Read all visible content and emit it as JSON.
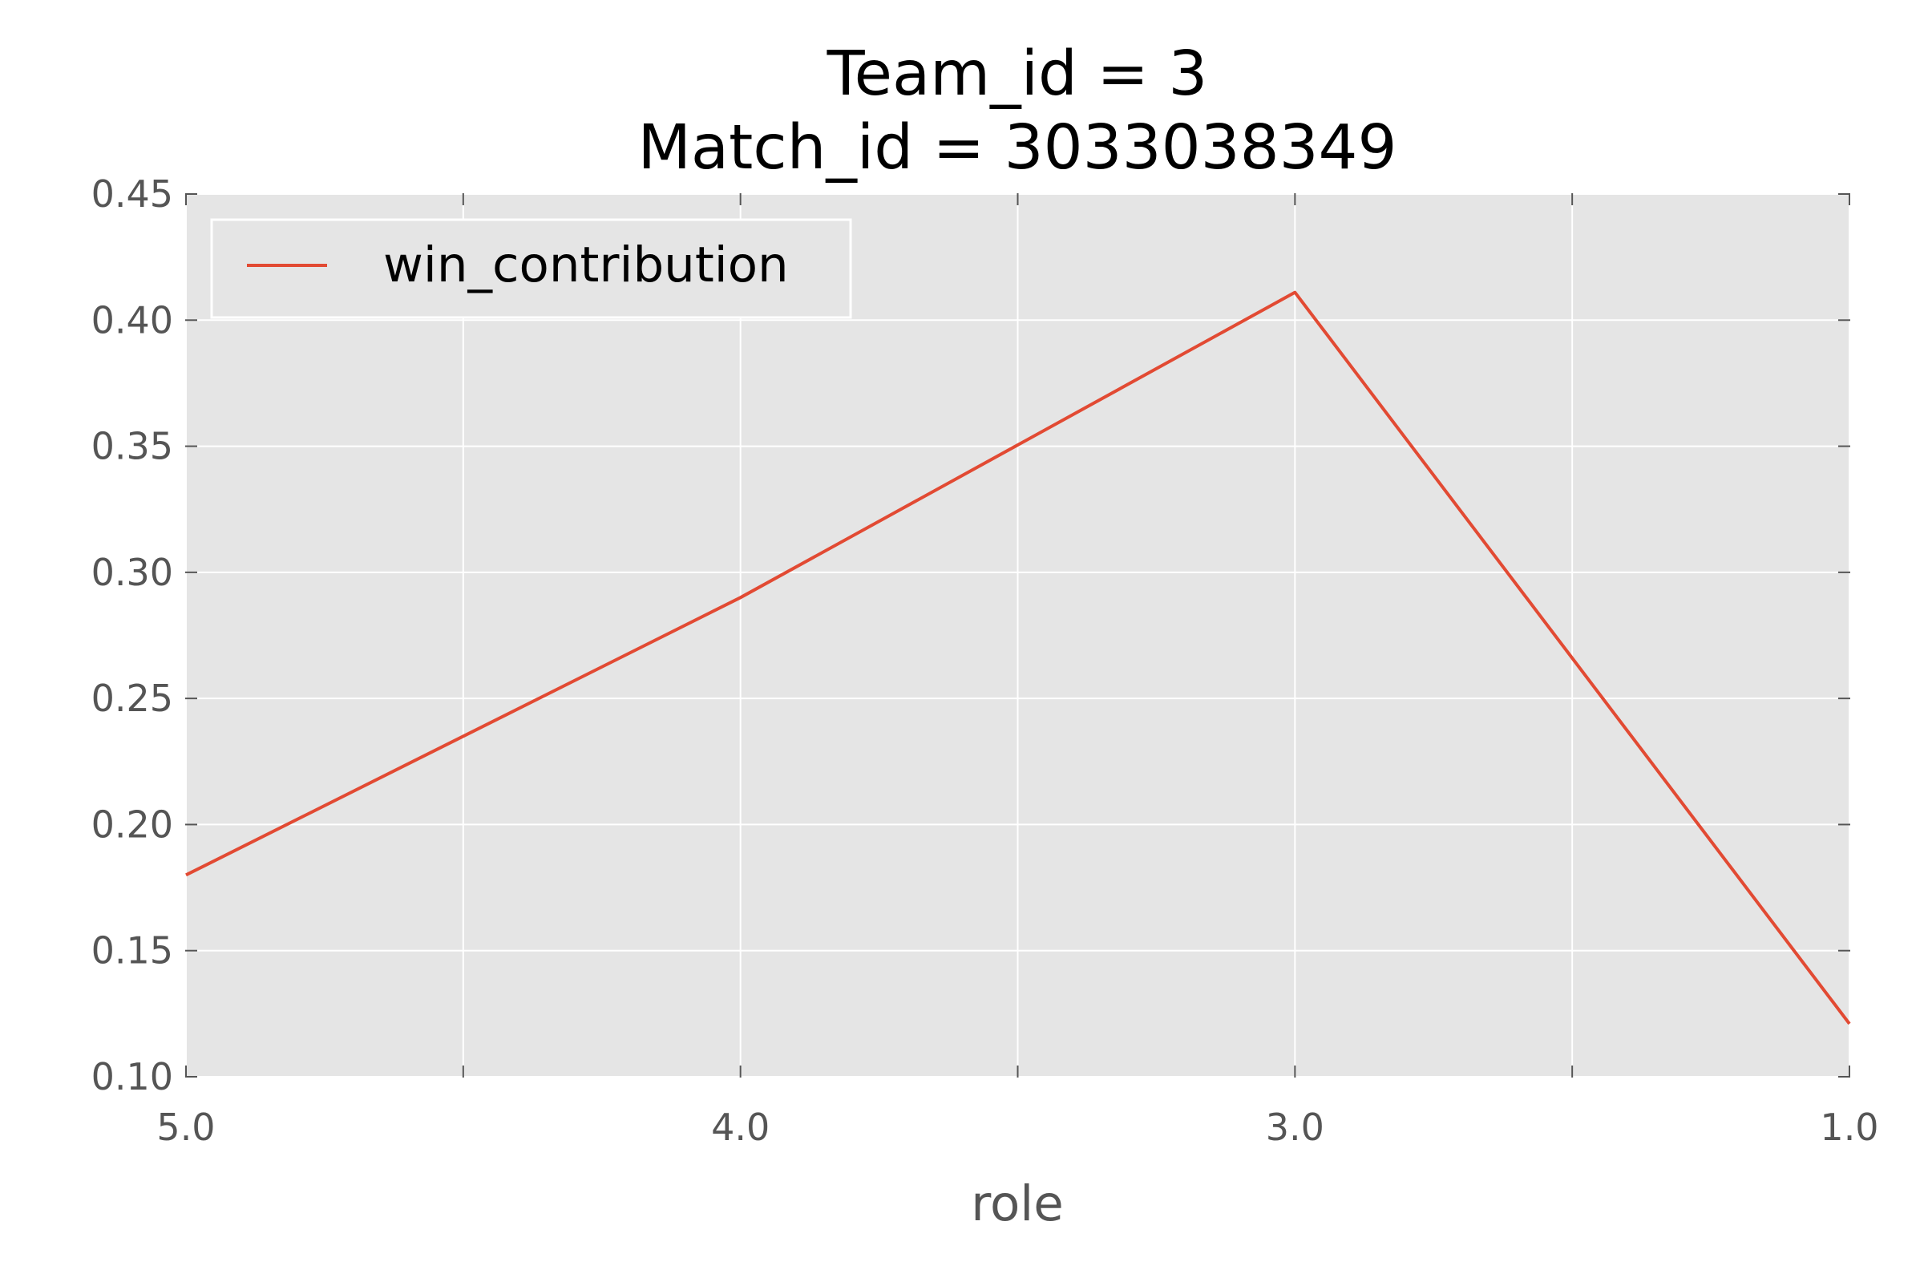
{
  "chart_data": {
    "type": "line",
    "title": [
      "Team_id = 3",
      "Match_id = 3033038349"
    ],
    "xlabel": "role",
    "ylabel": "",
    "categories": [
      "5.0",
      "4.0",
      "3.0",
      "1.0"
    ],
    "series": [
      {
        "name": "win_contribution",
        "color": "#e24a33",
        "values": [
          0.18,
          0.29,
          0.411,
          0.121
        ]
      }
    ],
    "ylim": [
      0.1,
      0.45
    ],
    "yticks": [
      "0.10",
      "0.15",
      "0.20",
      "0.25",
      "0.30",
      "0.35",
      "0.40",
      "0.45"
    ],
    "grid": true,
    "legend_position": "top-left",
    "plot_background": "#e5e5e5",
    "grid_color": "#ffffff"
  }
}
